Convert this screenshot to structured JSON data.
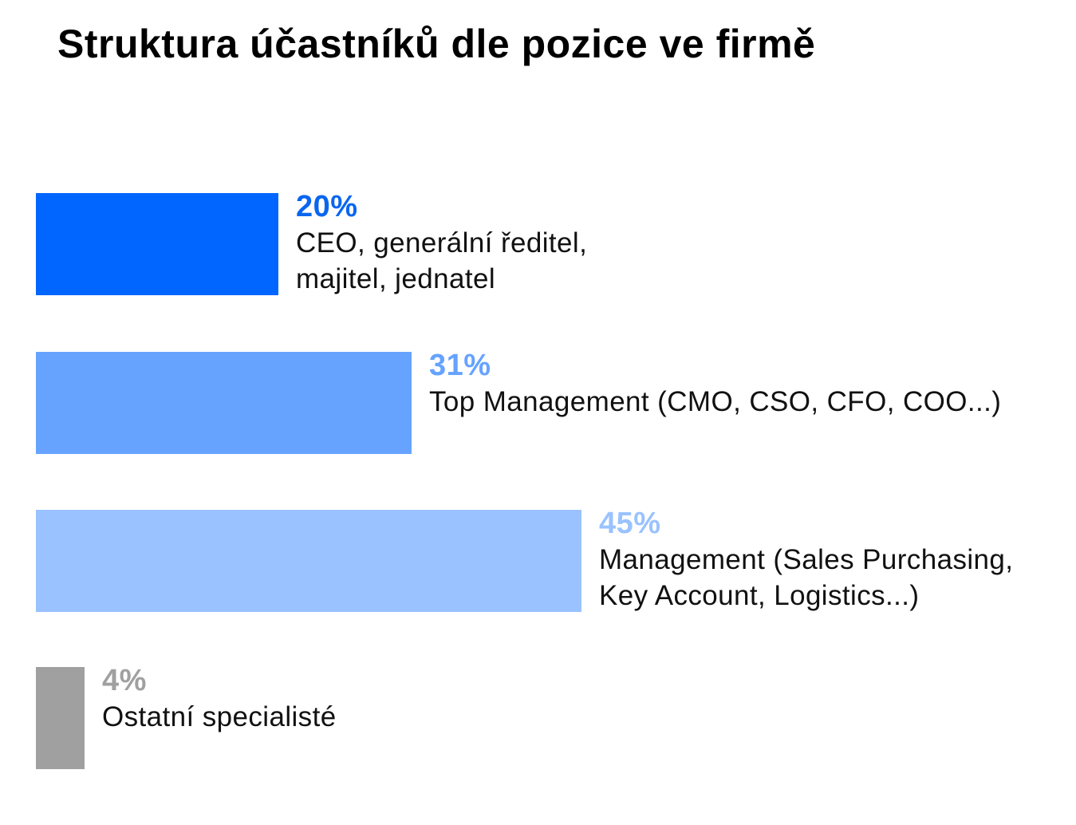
{
  "chart_data": {
    "type": "bar",
    "orientation": "horizontal",
    "title": "Struktura účastníků dle pozice ve firmě",
    "xlabel": "",
    "ylabel": "",
    "xlim": [
      0,
      100
    ],
    "grid": false,
    "bars": [
      {
        "value": 20,
        "value_label": "20%",
        "category_lines": [
          "CEO, generální ředitel,",
          "majitel, jednatel"
        ],
        "color": "#0066FF",
        "value_color": "#0A66F0"
      },
      {
        "value": 31,
        "value_label": "31%",
        "category_lines": [
          "Top Management (CMO, CSO, CFO, COO...)"
        ],
        "color": "#66A3FF",
        "value_color": "#66A3FF"
      },
      {
        "value": 45,
        "value_label": "45%",
        "category_lines": [
          "Management (Sales Purchasing,",
          "Key Account, Logistics...)"
        ],
        "color": "#99C2FF",
        "value_color": "#99C2FF"
      },
      {
        "value": 4,
        "value_label": "4%",
        "category_lines": [
          "Ostatní specialisté"
        ],
        "color": "#A0A0A0",
        "value_color": "#A0A0A0"
      }
    ]
  }
}
